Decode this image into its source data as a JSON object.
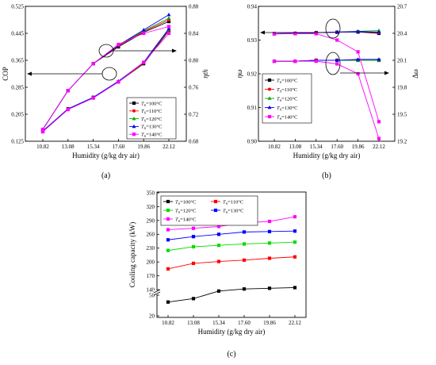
{
  "chart_data": [
    {
      "type": "line",
      "panel_label": "(a)",
      "x": [
        10.82,
        13.08,
        15.34,
        17.6,
        19.86,
        22.12
      ],
      "x_tick_labels": [
        "10.82",
        "13.08",
        "15.34",
        "17.60",
        "19.86",
        "22.12"
      ],
      "xlabel": "Humidity (g/kg dry air)",
      "ylabel": "COP",
      "y2label": "ηth",
      "ylim": [
        0.125,
        0.525
      ],
      "y_ticks": [
        "0.125",
        "0.205",
        "0.285",
        "0.365",
        "0.445",
        "0.525"
      ],
      "y2lim": [
        0.68,
        0.88
      ],
      "y2_ticks": [
        "0.68",
        "0.72",
        "0.76",
        "0.80",
        "0.84",
        "0.88"
      ],
      "legend_position": "bottom-right",
      "legend_prefix": "T",
      "legend_subscript": "S",
      "series": [
        {
          "name": "=100°C",
          "color": "#000000",
          "marker": "square",
          "cop": [
            0.16,
            0.275,
            0.355,
            0.405,
            0.448,
            0.48
          ],
          "eta": [
            0.695,
            0.728,
            0.745,
            0.768,
            0.795,
            0.844
          ]
        },
        {
          "name": "=110°C",
          "color": "#ff0000",
          "marker": "circle",
          "cop": [
            0.16,
            0.275,
            0.355,
            0.408,
            0.45,
            0.485
          ],
          "eta": [
            0.695,
            0.728,
            0.745,
            0.768,
            0.796,
            0.845
          ]
        },
        {
          "name": "=120°C",
          "color": "#00aa00",
          "marker": "triangle",
          "cop": [
            0.16,
            0.275,
            0.355,
            0.41,
            0.452,
            0.49
          ],
          "eta": [
            0.695,
            0.728,
            0.745,
            0.769,
            0.797,
            0.846
          ]
        },
        {
          "name": "=130°C",
          "color": "#0000ff",
          "marker": "triangle",
          "cop": [
            0.16,
            0.275,
            0.355,
            0.41,
            0.455,
            0.5
          ],
          "eta": [
            0.695,
            0.728,
            0.745,
            0.769,
            0.797,
            0.847
          ]
        },
        {
          "name": "=140°C",
          "color": "#ff00ff",
          "marker": "square",
          "cop": [
            0.16,
            0.275,
            0.355,
            0.412,
            0.445,
            0.465
          ],
          "eta": [
            0.694,
            0.727,
            0.744,
            0.768,
            0.797,
            0.84
          ]
        }
      ]
    },
    {
      "type": "line",
      "panel_label": "(b)",
      "x": [
        10.82,
        13.08,
        15.34,
        17.6,
        19.86,
        22.12
      ],
      "x_tick_labels": [
        "10.82",
        "13.08",
        "15.34",
        "17.60",
        "19.86",
        "22.12"
      ],
      "xlabel": "Humidity (g/kg dry air)",
      "ylabel": "ηω",
      "y2label": "Δω",
      "ylim": [
        0.9,
        0.94
      ],
      "y_ticks": [
        "0.90",
        "0.91",
        "0.92",
        "0.93",
        "0.94"
      ],
      "y2lim": [
        19.2,
        20.7
      ],
      "y2_ticks": [
        "19.2",
        "19.5",
        "19.8",
        "20.1",
        "20.4",
        "20.7"
      ],
      "legend_position": "bottom-right",
      "legend_prefix": "T",
      "legend_subscript": "S",
      "series": [
        {
          "name": "=100°C",
          "color": "#000000",
          "marker": "square",
          "eta_w": [
            0.9319,
            0.932,
            0.9322,
            0.9323,
            0.9324,
            0.932
          ],
          "delta_w": [
            20.09,
            20.09,
            20.1,
            20.1,
            20.1,
            20.1
          ]
        },
        {
          "name": "=110°C",
          "color": "#ff0000",
          "marker": "circle",
          "eta_w": [
            0.9319,
            0.932,
            0.9322,
            0.9323,
            0.9325,
            0.9322
          ],
          "delta_w": [
            20.09,
            20.09,
            20.1,
            20.1,
            20.1,
            20.1
          ]
        },
        {
          "name": "=120°C",
          "color": "#00aa00",
          "marker": "triangle",
          "eta_w": [
            0.9319,
            0.932,
            0.9322,
            0.9324,
            0.9326,
            0.9328
          ],
          "delta_w": [
            20.09,
            20.09,
            20.1,
            20.1,
            20.1,
            20.1
          ]
        },
        {
          "name": "=130°C",
          "color": "#0000ff",
          "marker": "triangle",
          "eta_w": [
            0.9319,
            0.932,
            0.9322,
            0.9324,
            0.9325,
            0.9324
          ],
          "delta_w": [
            20.09,
            20.09,
            20.1,
            20.1,
            20.11,
            20.11
          ]
        },
        {
          "name": "=140°C",
          "color": "#ff00ff",
          "marker": "square",
          "eta_w": [
            0.9318,
            0.9319,
            0.9319,
            0.93,
            0.9265,
            0.9058
          ],
          "delta_w": [
            20.09,
            20.09,
            20.09,
            20.06,
            19.95,
            19.23
          ]
        }
      ]
    },
    {
      "type": "line",
      "panel_label": "(c)",
      "x": [
        10.82,
        13.08,
        15.34,
        17.6,
        19.86,
        22.12
      ],
      "x_tick_labels": [
        "10.82",
        "13.08",
        "15.34",
        "17.60",
        "19.86",
        "22.12"
      ],
      "xlabel": "Humidity (g/kg dry air)",
      "ylabel": "Cooling capacity (kW)",
      "y_ticks_upper": [
        "140",
        "170",
        "200",
        "230",
        "260",
        "290",
        "320",
        "350"
      ],
      "y_ticks_lower": [
        "20",
        "50"
      ],
      "axis_break": true,
      "legend_position": "top-left",
      "legend_prefix": "T",
      "legend_subscript": "S",
      "series": [
        {
          "name": "=100°C",
          "color": "#000000",
          "marker": "square",
          "values": [
            40,
            45,
            56,
            59,
            60,
            61
          ]
        },
        {
          "name": "=110°C",
          "color": "#ff0000",
          "marker": "square",
          "values": [
            185,
            197,
            201,
            204,
            208,
            211
          ]
        },
        {
          "name": "=120°C",
          "color": "#00dd00",
          "marker": "square",
          "values": [
            225,
            233,
            236,
            239,
            241,
            243
          ]
        },
        {
          "name": "=130°C",
          "color": "#0000ff",
          "marker": "square",
          "values": [
            248,
            255,
            260,
            265,
            266,
            267
          ]
        },
        {
          "name": "=140°C",
          "color": "#ff00ff",
          "marker": "square",
          "values": [
            270,
            273,
            277,
            285,
            288,
            298
          ]
        }
      ]
    }
  ]
}
